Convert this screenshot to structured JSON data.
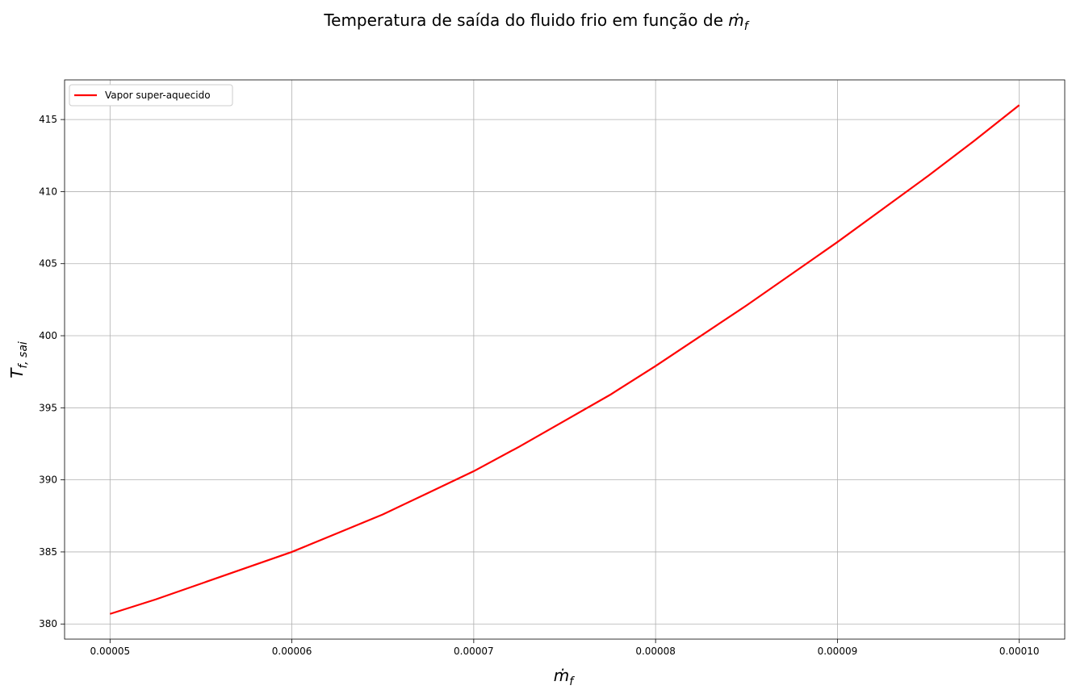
{
  "chart_data": {
    "type": "line",
    "title": {
      "text": "Temperatura de saída do fluido frio em função de",
      "main": "ṁ",
      "sub": "f"
    },
    "xlabel": {
      "main": "ṁ",
      "sub": "f"
    },
    "ylabel": {
      "main": "T",
      "sub": "f, sai"
    },
    "x": [
      5e-05,
      5.25e-05,
      5.5e-05,
      5.75e-05,
      6e-05,
      6.25e-05,
      6.5e-05,
      6.75e-05,
      7e-05,
      7.25e-05,
      7.5e-05,
      7.75e-05,
      8e-05,
      8.25e-05,
      8.5e-05,
      8.75e-05,
      9e-05,
      9.25e-05,
      9.5e-05,
      9.75e-05,
      0.0001
    ],
    "series": [
      {
        "name": "Vapor super-aquecido",
        "color": "#ff0000",
        "values": [
          380.7,
          381.7,
          382.8,
          383.9,
          385.0,
          386.3,
          387.6,
          389.1,
          390.6,
          392.3,
          394.1,
          395.9,
          397.9,
          400.0,
          402.1,
          404.3,
          406.5,
          408.8,
          411.1,
          413.5,
          416.0
        ]
      }
    ],
    "xlim": [
      4.75e-05,
      0.0001025
    ],
    "xticks": [
      5e-05,
      6e-05,
      7e-05,
      8e-05,
      9e-05,
      {
        "value": 0.0001,
        "label": "0.00010"
      }
    ],
    "ylim": [
      378.95,
      417.75
    ],
    "yticks": [
      380,
      385,
      390,
      395,
      400,
      405,
      410,
      415
    ],
    "grid": true,
    "legend": "upper-left"
  }
}
